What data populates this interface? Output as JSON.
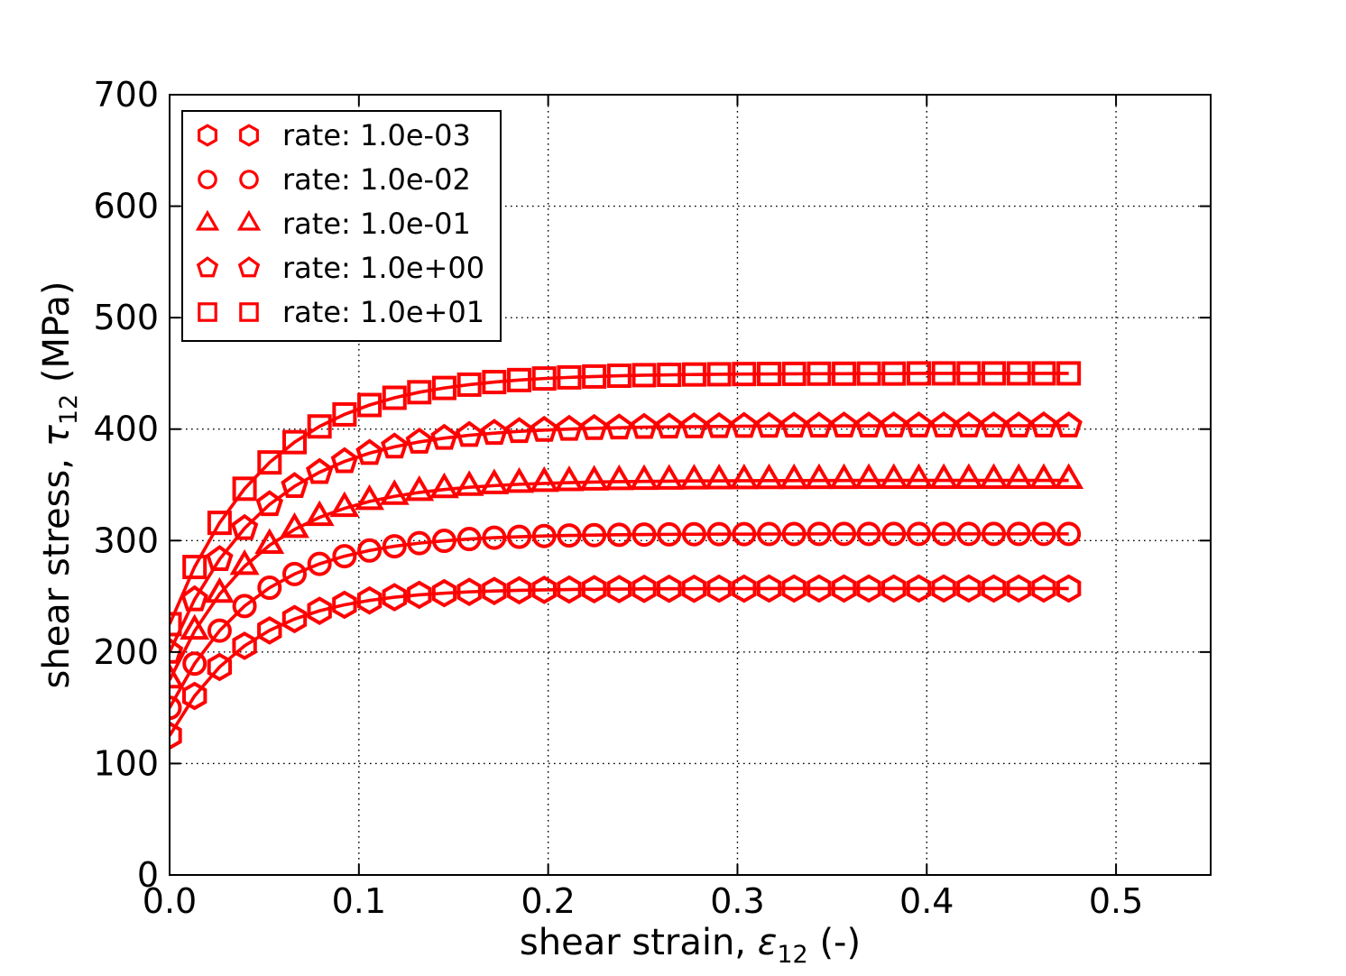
{
  "figure": {
    "background": "#ffffff",
    "frame_color": "#000000",
    "series_color": "#ff0000",
    "grid_color": "#000000"
  },
  "chart_data": {
    "type": "line",
    "title": "",
    "xlabel": "shear strain, ε_12 (-)",
    "ylabel": "shear stress, τ_12 (MPa)",
    "xlabel_parts": {
      "prefix": "shear strain, ",
      "symbol": "ε",
      "subscript": "12",
      "suffix": " (-)"
    },
    "ylabel_parts": {
      "prefix": "shear stress, ",
      "symbol": "τ",
      "subscript": "12",
      "suffix": " (MPa)"
    },
    "xlim": [
      0,
      0.55
    ],
    "ylim": [
      0,
      700
    ],
    "grid": "dotted",
    "x_ticks": {
      "values": [
        0,
        0.1,
        0.2,
        0.3,
        0.4,
        0.5
      ],
      "labels": [
        "0.0",
        "0.1",
        "0.2",
        "0.3",
        "0.4",
        "0.5"
      ]
    },
    "y_ticks": {
      "values": [
        0,
        100,
        200,
        300,
        400,
        500,
        600,
        700
      ],
      "labels": [
        "0",
        "100",
        "200",
        "300",
        "400",
        "500",
        "600",
        "700"
      ]
    },
    "legend": {
      "position": "upper left",
      "numpoints": 2,
      "entries": [
        {
          "label": "rate: 1.0e-03",
          "marker": "hexagon"
        },
        {
          "label": "rate: 1.0e-02",
          "marker": "circle"
        },
        {
          "label": "rate: 1.0e-01",
          "marker": "triangle-up"
        },
        {
          "label": "rate: 1.0e+00",
          "marker": "pentagon"
        },
        {
          "label": "rate: 1.0e+01",
          "marker": "square"
        }
      ]
    },
    "x": [
      0,
      0.0132,
      0.0264,
      0.0396,
      0.0528,
      0.066,
      0.0792,
      0.0924,
      0.1056,
      0.1188,
      0.1319,
      0.1451,
      0.1583,
      0.1715,
      0.1847,
      0.1979,
      0.2111,
      0.2243,
      0.2375,
      0.2507,
      0.2639,
      0.2771,
      0.2903,
      0.3035,
      0.3167,
      0.3299,
      0.3431,
      0.3563,
      0.3694,
      0.3826,
      0.3958,
      0.409,
      0.4222,
      0.4354,
      0.4486,
      0.4618,
      0.475
    ],
    "series": [
      {
        "name": "rate: 1.0e-03",
        "marker": "hexagon",
        "color": "#ff0000",
        "values": [
          125,
          160.6,
          186.6,
          205.6,
          219.4,
          229.6,
          237,
          242.4,
          246.3,
          249.2,
          251.3,
          252.8,
          254,
          254.8,
          255.4,
          255.8,
          256.1,
          256.4,
          256.5,
          256.7,
          256.8,
          256.8,
          256.9,
          256.9,
          257,
          257,
          257,
          257,
          257,
          257,
          257,
          257,
          257,
          257,
          257,
          257,
          257
        ]
      },
      {
        "name": "rate: 1.0e-02",
        "marker": "circle",
        "color": "#ff0000",
        "values": [
          150,
          189.6,
          219.2,
          241.3,
          257.7,
          270,
          279.1,
          286,
          291.1,
          294.9,
          297.7,
          299.8,
          301.4,
          302.6,
          303.4,
          304.1,
          304.6,
          304.9,
          305.2,
          305.4,
          305.6,
          305.7,
          305.8,
          305.8,
          305.9,
          305.9,
          306,
          306,
          306,
          306,
          306,
          306,
          306,
          306,
          306,
          306,
          306
        ]
      },
      {
        "name": "rate: 1.0e-01",
        "marker": "triangle-up",
        "color": "#ff0000",
        "values": [
          175,
          218.8,
          251.9,
          276.9,
          295.8,
          310,
          320.8,
          328.9,
          335.1,
          339.7,
          343.2,
          345.8,
          347.8,
          349.3,
          350.5,
          351.3,
          352,
          352.5,
          352.9,
          353.1,
          353.3,
          353.5,
          353.6,
          353.7,
          353.8,
          353.8,
          353.9,
          353.9,
          354,
          354,
          354,
          354,
          354,
          354,
          354,
          354,
          354
        ]
      },
      {
        "name": "rate: 1.0e+00",
        "marker": "pentagon",
        "color": "#ff0000",
        "values": [
          200,
          247.1,
          283.2,
          311,
          332.4,
          348.7,
          361.3,
          371,
          378.4,
          384.1,
          388.5,
          391.9,
          394.5,
          396.4,
          398,
          399.1,
          400,
          400.7,
          401.2,
          401.7,
          402,
          402.2,
          402.4,
          402.6,
          402.7,
          402.8,
          402.8,
          402.9,
          402.9,
          403,
          403,
          403,
          403,
          403,
          403,
          403,
          403
        ]
      },
      {
        "name": "rate: 1.0e+01",
        "marker": "square",
        "color": "#ff0000",
        "values": [
          225,
          276.3,
          315.9,
          346.5,
          370.1,
          388.3,
          402.4,
          413.2,
          421.6,
          428.1,
          433.1,
          436.9,
          439.9,
          442.2,
          444,
          445.4,
          446.4,
          447.2,
          447.9,
          448.4,
          448.7,
          449,
          449.2,
          449.4,
          449.5,
          449.6,
          449.7,
          449.7,
          449.8,
          449.8,
          450,
          450,
          450,
          450,
          450,
          450,
          450
        ]
      }
    ]
  }
}
